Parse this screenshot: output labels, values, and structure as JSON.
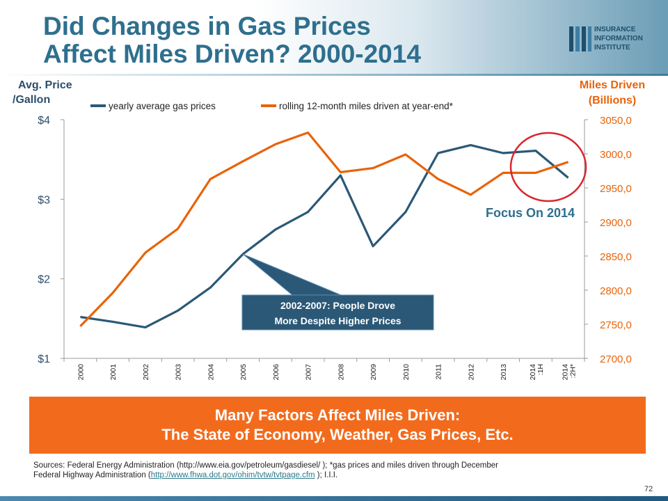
{
  "header": {
    "title_line1": "Did Changes in Gas Prices",
    "title_line2": "Affect Miles Driven? 2000-2014"
  },
  "logo": {
    "line1": "INSURANCE",
    "line2": "INFORMATION",
    "line3": "INSTITUTE"
  },
  "chart_data": {
    "type": "line",
    "title": "",
    "categories": [
      "2000",
      "2001",
      "2002",
      "2003",
      "2004",
      "2005",
      "2006",
      "2007",
      "2008",
      "2009",
      "2010",
      "2011",
      "2012",
      "2013",
      "2014 :1H",
      "2014 :2H*"
    ],
    "left_axis_title_line1": "Avg. Price",
    "left_axis_title_line2": "/Gallon",
    "right_axis_title_line1": "Miles Driven",
    "right_axis_title_line2": "(Billions)",
    "left_ticks": [
      "$1",
      "$2",
      "$3",
      "$4"
    ],
    "right_ticks": [
      "2700,0",
      "2750,0",
      "2800,0",
      "2850,0",
      "2900,0",
      "2950,0",
      "3000,0",
      "3050,0"
    ],
    "ylim_left": [
      1,
      4
    ],
    "ylim_right": [
      2700,
      3050
    ],
    "legend_position": "top",
    "series": [
      {
        "name": "yearly average gas prices",
        "axis": "left",
        "color": "#2b5876",
        "values": [
          1.52,
          1.46,
          1.39,
          1.6,
          1.89,
          2.31,
          2.62,
          2.84,
          3.3,
          2.41,
          2.84,
          3.58,
          3.68,
          3.58,
          3.61,
          3.27
        ]
      },
      {
        "name": "rolling 12-month miles driven at year-end*",
        "axis": "right",
        "color": "#e8630a",
        "values": [
          2747,
          2796,
          2855,
          2890,
          2963,
          2989,
          3014,
          3031,
          2973,
          2979,
          2999,
          2963,
          2940,
          2972,
          2972,
          2988
        ]
      }
    ],
    "annotation_text_line1": "2002-2007: People Drove",
    "annotation_text_line2": "More Despite Higher Prices",
    "focus_label": "Focus On 2014"
  },
  "banner": {
    "line1": "Many Factors Affect Miles Driven:",
    "line2": "The State of Economy, Weather, Gas Prices, Etc."
  },
  "sources": {
    "line1": "Sources: Federal Energy Administration (http://www.eia.gov/petroleum/gasdiesel/ ); *gas prices and miles driven through December",
    "line2_prefix": "Federal Highway Administration (",
    "line2_link": "http://www.fhwa.dot.gov/ohim/tvtw/tvtpage.cfm",
    "line2_suffix": " ); I.I.I."
  },
  "page_number": "72",
  "colors": {
    "title": "#2e6f8e",
    "gas_line": "#2b5876",
    "miles_line": "#e8630a",
    "banner": "#f26b1d",
    "focus_circle": "#d9262e"
  }
}
